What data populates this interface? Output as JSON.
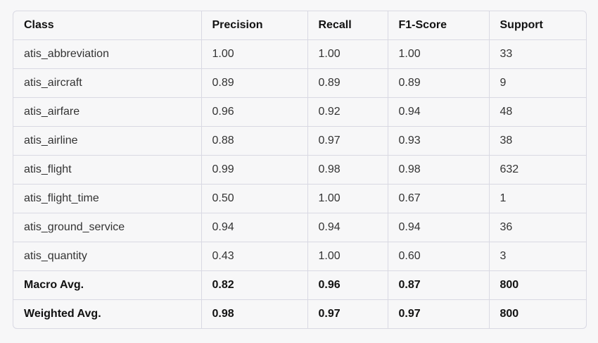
{
  "table": {
    "headers": [
      "Class",
      "Precision",
      "Recall",
      "F1-Score",
      "Support"
    ],
    "rows": [
      [
        "atis_abbreviation",
        "1.00",
        "1.00",
        "1.00",
        "33"
      ],
      [
        "atis_aircraft",
        "0.89",
        "0.89",
        "0.89",
        "9"
      ],
      [
        "atis_airfare",
        "0.96",
        "0.92",
        "0.94",
        "48"
      ],
      [
        "atis_airline",
        "0.88",
        "0.97",
        "0.93",
        "38"
      ],
      [
        "atis_flight",
        "0.99",
        "0.98",
        "0.98",
        "632"
      ],
      [
        "atis_flight_time",
        "0.50",
        "1.00",
        "0.67",
        "1"
      ],
      [
        "atis_ground_service",
        "0.94",
        "0.94",
        "0.94",
        "36"
      ],
      [
        "atis_quantity",
        "0.43",
        "1.00",
        "0.60",
        "3"
      ],
      [
        "Macro Avg.",
        "0.82",
        "0.96",
        "0.87",
        "800"
      ],
      [
        "Weighted Avg.",
        "0.98",
        "0.97",
        "0.97",
        "800"
      ]
    ]
  }
}
